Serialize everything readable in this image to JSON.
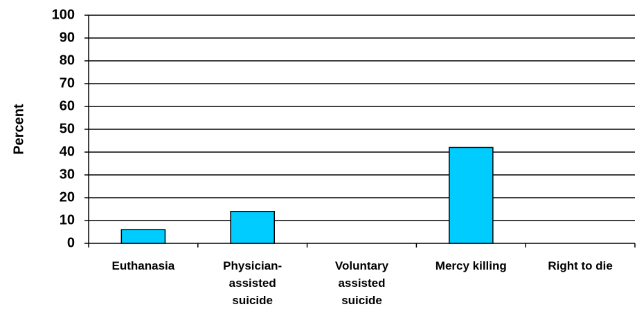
{
  "chart_data": {
    "type": "bar",
    "y_label": "Percent",
    "categories": [
      "Euthanasia",
      "Physician-assisted suicide",
      "Voluntary assisted suicide",
      "Mercy killing",
      "Right to die"
    ],
    "values": [
      6,
      14,
      0,
      42,
      0
    ],
    "color": "#00ccff",
    "ylim": [
      0,
      100
    ],
    "yticks": [
      0,
      10,
      20,
      30,
      40,
      50,
      60,
      70,
      80,
      90,
      100
    ],
    "grid": true
  }
}
